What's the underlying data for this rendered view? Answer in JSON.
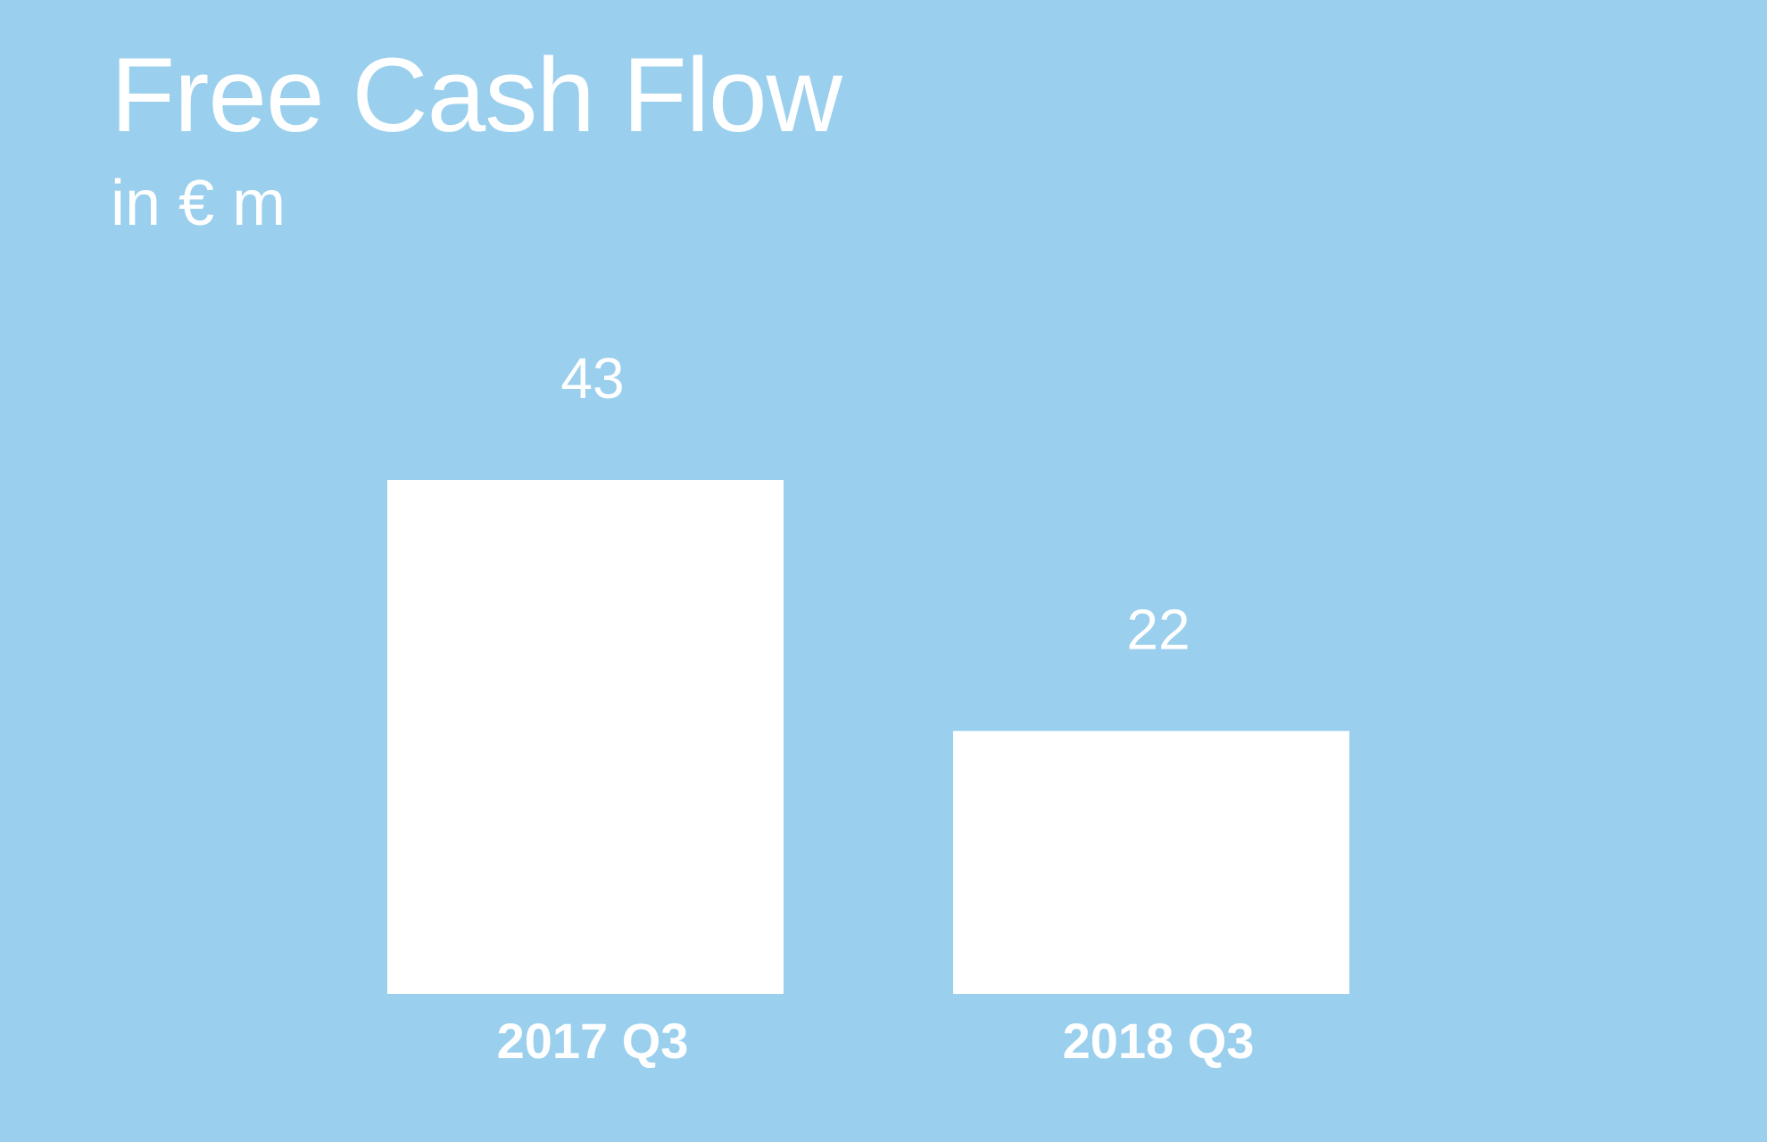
{
  "title": "Free Cash Flow",
  "subtitle": "in € m",
  "colors": {
    "background": "#9acfee",
    "bar": "#ffffff",
    "text": "#ffffff"
  },
  "chart_data": {
    "type": "bar",
    "title": "Free Cash Flow",
    "subtitle": "in € m",
    "categories": [
      "2017 Q3",
      "2018 Q3"
    ],
    "values": [
      43,
      22
    ],
    "data_labels": [
      "43",
      "22"
    ],
    "xlabel": "",
    "ylabel": "",
    "grid": false,
    "legend": "none"
  }
}
